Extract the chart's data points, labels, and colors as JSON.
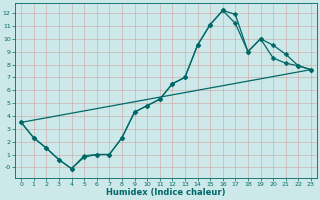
{
  "xlabel": "Humidex (Indice chaleur)",
  "bg_color": "#cce8e8",
  "line_color": "#006868",
  "grid_color": "#b0cccc",
  "xlim": [
    -0.5,
    23.5
  ],
  "ylim": [
    -0.8,
    12.8
  ],
  "xticks": [
    0,
    1,
    2,
    3,
    4,
    5,
    6,
    7,
    8,
    9,
    10,
    11,
    12,
    13,
    14,
    15,
    16,
    17,
    18,
    19,
    20,
    21,
    22,
    23
  ],
  "yticks": [
    0,
    1,
    2,
    3,
    4,
    5,
    6,
    7,
    8,
    9,
    10,
    11,
    12
  ],
  "ytick_labels": [
    "-0",
    "1",
    "2",
    "3",
    "4",
    "5",
    "6",
    "7",
    "8",
    "9",
    "10",
    "11",
    "12"
  ],
  "line1_x": [
    0,
    1,
    2,
    3,
    4,
    5,
    6,
    7,
    8,
    9,
    10,
    11,
    12,
    13,
    14,
    15,
    16,
    17,
    18,
    19,
    20,
    21,
    22,
    23
  ],
  "line1_y": [
    3.5,
    2.3,
    1.5,
    0.6,
    -0.1,
    0.8,
    1.0,
    1.0,
    2.3,
    4.3,
    4.8,
    5.3,
    6.5,
    7.0,
    9.5,
    11.1,
    12.2,
    11.9,
    9.0,
    10.0,
    8.5,
    8.1,
    7.9,
    7.6
  ],
  "line2_x": [
    0,
    1,
    2,
    3,
    4,
    5,
    6,
    7,
    8,
    9,
    10,
    11,
    12,
    13,
    14,
    15,
    16,
    17,
    18,
    19,
    20,
    21,
    22,
    23
  ],
  "line2_y": [
    3.5,
    2.3,
    1.5,
    0.6,
    -0.1,
    0.9,
    1.0,
    1.0,
    2.3,
    4.3,
    4.8,
    5.3,
    6.5,
    7.0,
    9.5,
    11.1,
    12.2,
    11.2,
    9.0,
    10.0,
    9.5,
    8.8,
    7.9,
    7.6
  ],
  "line3_x": [
    0,
    23
  ],
  "line3_y": [
    3.5,
    7.6
  ],
  "markersize": 2.5,
  "linewidth": 0.9
}
